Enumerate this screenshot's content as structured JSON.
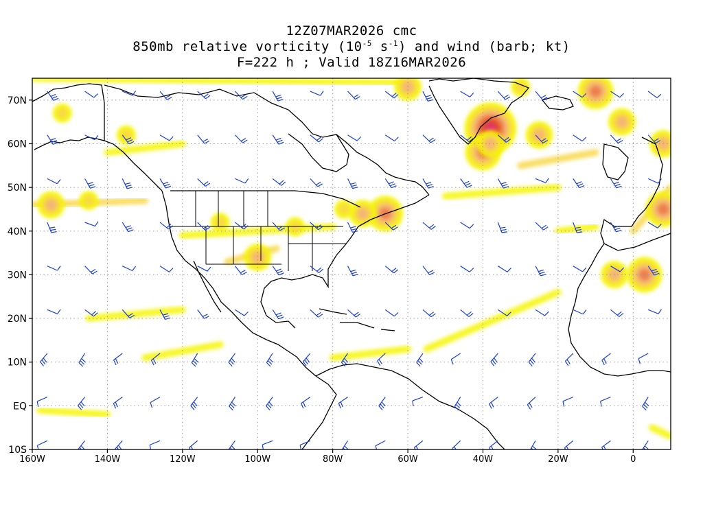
{
  "header": {
    "line1": "12Z07MAR2026 cmc",
    "line2_prefix": "850mb relative vorticity (10",
    "line2_exp1": "-5",
    "line2_mid": " s",
    "line2_exp2": "-1",
    "line2_suffix": ") and wind (barb; kt)",
    "line3": "F=222 h ; Valid 18Z16MAR2026"
  },
  "axes": {
    "x_ticks": [
      {
        "lon": -160,
        "label": "160W"
      },
      {
        "lon": -140,
        "label": "140W"
      },
      {
        "lon": -120,
        "label": "120W"
      },
      {
        "lon": -100,
        "label": "100W"
      },
      {
        "lon": -80,
        "label": "80W"
      },
      {
        "lon": -60,
        "label": "60W"
      },
      {
        "lon": -40,
        "label": "40W"
      },
      {
        "lon": -20,
        "label": "20W"
      },
      {
        "lon": 0,
        "label": "0"
      }
    ],
    "y_ticks": [
      {
        "lat": 70,
        "label": "70N"
      },
      {
        "lat": 60,
        "label": "60N"
      },
      {
        "lat": 50,
        "label": "50N"
      },
      {
        "lat": 40,
        "label": "40N"
      },
      {
        "lat": 30,
        "label": "30N"
      },
      {
        "lat": 20,
        "label": "20N"
      },
      {
        "lat": 10,
        "label": "10N"
      },
      {
        "lat": 0,
        "label": "EQ"
      },
      {
        "lat": -10,
        "label": "10S"
      }
    ],
    "lon_range": [
      -160,
      10
    ],
    "lat_range": [
      -10,
      75
    ],
    "grid": "dotted"
  },
  "colors": {
    "coast": "#000000",
    "grid": "#9a9a9a",
    "barb": "#1c3fd4",
    "vort_levels": [
      "#f5f500",
      "#f8d848",
      "#f5b27a",
      "#ec7a4a",
      "#e04828",
      "#e0307a"
    ]
  },
  "vorticity_features": [
    {
      "lon": -38,
      "lat": 63.5,
      "level": 5
    },
    {
      "lon": -40,
      "lat": 58,
      "level": 3
    },
    {
      "lon": -38,
      "lat": 60,
      "level": 2
    },
    {
      "lon": -25,
      "lat": 62,
      "level": 2
    },
    {
      "lon": -10,
      "lat": 72,
      "level": 3
    },
    {
      "lon": -3,
      "lat": 65,
      "level": 2
    },
    {
      "lon": 8,
      "lat": 45,
      "level": 3
    },
    {
      "lon": 8,
      "lat": 60,
      "level": 2
    },
    {
      "lon": 3,
      "lat": 30,
      "level": 3
    },
    {
      "lon": -5,
      "lat": 30,
      "level": 2
    },
    {
      "lon": -66,
      "lat": 44,
      "level": 3
    },
    {
      "lon": -72,
      "lat": 44,
      "level": 2
    },
    {
      "lon": -77,
      "lat": 45,
      "level": 1
    },
    {
      "lon": -155,
      "lat": 46,
      "level": 2
    },
    {
      "lon": -145,
      "lat": 47,
      "level": 1
    },
    {
      "lon": -152,
      "lat": 67,
      "level": 1
    },
    {
      "lon": -135,
      "lat": 62,
      "level": 1
    },
    {
      "lon": -110,
      "lat": 42,
      "level": 1
    },
    {
      "lon": -100,
      "lat": 34,
      "level": 2
    },
    {
      "lon": -90,
      "lat": 41,
      "level": 1
    },
    {
      "lon": -60,
      "lat": 73,
      "level": 2
    },
    {
      "lon": -30,
      "lat": 73,
      "level": 1
    }
  ],
  "vorticity_bands": [
    {
      "from": [
        -160,
        46
      ],
      "to": [
        -130,
        47
      ],
      "level": 1
    },
    {
      "from": [
        -120,
        39
      ],
      "to": [
        -80,
        41
      ],
      "level": 0
    },
    {
      "from": [
        -108,
        33
      ],
      "to": [
        -95,
        36
      ],
      "level": 1
    },
    {
      "from": [
        -160,
        75
      ],
      "to": [
        -60,
        74
      ],
      "level": 0
    },
    {
      "from": [
        -50,
        48
      ],
      "to": [
        -20,
        50
      ],
      "level": 0
    },
    {
      "from": [
        -55,
        13
      ],
      "to": [
        -20,
        26
      ],
      "level": 0
    },
    {
      "from": [
        -145,
        20
      ],
      "to": [
        -120,
        22
      ],
      "level": 0
    },
    {
      "from": [
        -130,
        11
      ],
      "to": [
        -110,
        14
      ],
      "level": 0
    },
    {
      "from": [
        -158,
        -1
      ],
      "to": [
        -140,
        -2
      ],
      "level": 0
    },
    {
      "from": [
        -80,
        11
      ],
      "to": [
        -60,
        13
      ],
      "level": 0
    },
    {
      "from": [
        -30,
        55
      ],
      "to": [
        -10,
        58
      ],
      "level": 1
    },
    {
      "from": [
        -140,
        58
      ],
      "to": [
        -120,
        60
      ],
      "level": 0
    },
    {
      "from": [
        0,
        40
      ],
      "to": [
        10,
        50
      ],
      "level": 1
    },
    {
      "from": [
        -20,
        40
      ],
      "to": [
        -10,
        41
      ],
      "level": 0
    },
    {
      "from": [
        5,
        -5
      ],
      "to": [
        10,
        -7
      ],
      "level": 0
    }
  ]
}
